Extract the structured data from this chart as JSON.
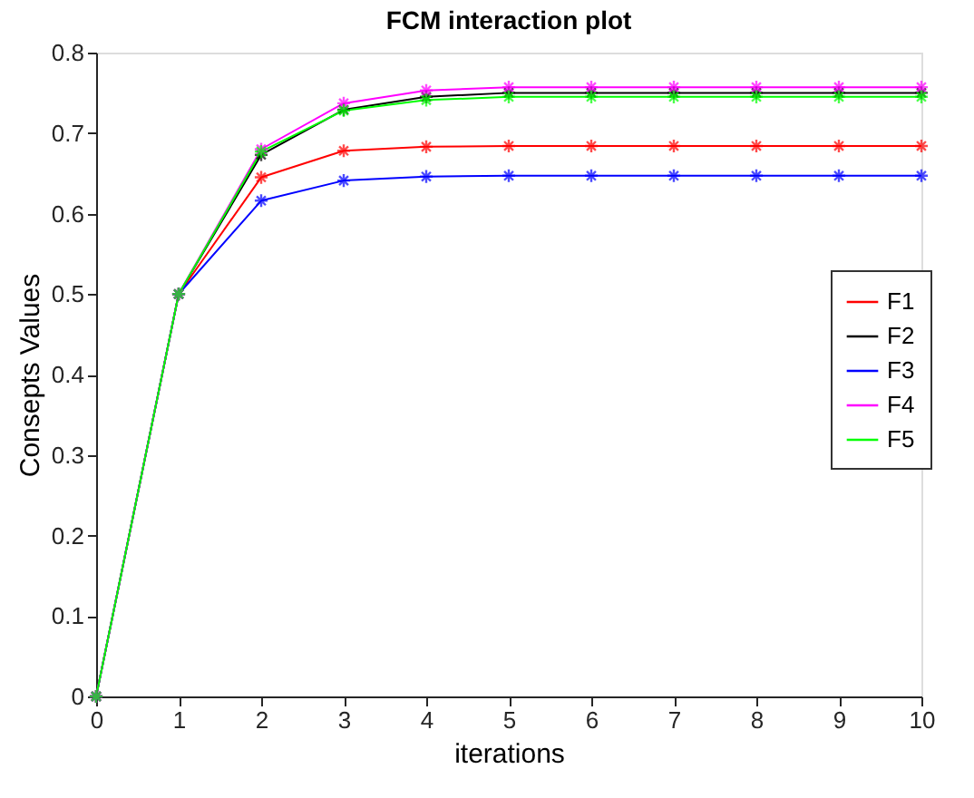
{
  "chart_data": {
    "type": "line",
    "title": "FCM interaction plot",
    "xlabel": "iterations",
    "ylabel": "Consepts Values",
    "x": [
      0,
      1,
      2,
      3,
      4,
      5,
      6,
      7,
      8,
      9,
      10
    ],
    "series": [
      {
        "name": "F1",
        "color": "#ff0000",
        "values": [
          0,
          0.5,
          0.645,
          0.678,
          0.683,
          0.684,
          0.684,
          0.684,
          0.684,
          0.684,
          0.684
        ]
      },
      {
        "name": "F2",
        "color": "#000000",
        "values": [
          0,
          0.5,
          0.673,
          0.729,
          0.745,
          0.75,
          0.75,
          0.75,
          0.75,
          0.75,
          0.75
        ]
      },
      {
        "name": "F3",
        "color": "#0000ff",
        "values": [
          0,
          0.5,
          0.616,
          0.641,
          0.646,
          0.647,
          0.647,
          0.647,
          0.647,
          0.647,
          0.647
        ]
      },
      {
        "name": "F4",
        "color": "#ff00ff",
        "values": [
          0,
          0.5,
          0.68,
          0.737,
          0.753,
          0.757,
          0.757,
          0.757,
          0.757,
          0.757,
          0.757
        ]
      },
      {
        "name": "F5",
        "color": "#00ff00",
        "values": [
          0,
          0.5,
          0.677,
          0.728,
          0.741,
          0.745,
          0.745,
          0.745,
          0.745,
          0.745,
          0.745
        ]
      }
    ],
    "xlim": [
      0,
      10
    ],
    "xticks": [
      0,
      1,
      2,
      3,
      4,
      5,
      6,
      7,
      8,
      9,
      10
    ],
    "ylim": [
      0,
      0.8
    ],
    "yticks": [
      0,
      0.1,
      0.2,
      0.3,
      0.4,
      0.5,
      0.6,
      0.7,
      0.8
    ],
    "grid": false,
    "legend": "right",
    "marker": "cross",
    "line_style": "solid"
  }
}
